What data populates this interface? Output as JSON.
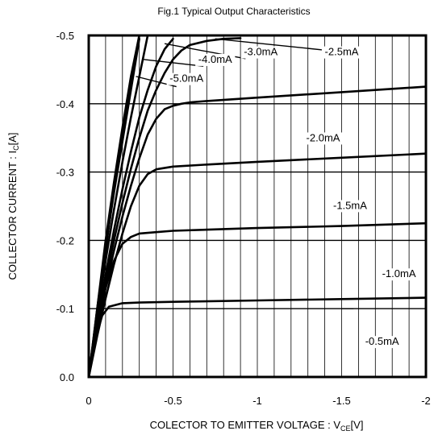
{
  "chart_data": {
    "type": "line",
    "title": "Fig.1  Typical Output Characteristics",
    "xlabel_main": "COLECTOR TO EMITTER VOLTAGE : V",
    "xlabel_sub": "CE",
    "xlabel_unit": "[V]",
    "ylabel_main": "COLLECTOR CURRENT : I",
    "ylabel_sub": "C",
    "ylabel_unit": "[A]",
    "xlim": [
      0,
      -2
    ],
    "ylim": [
      0,
      -0.5
    ],
    "x_ticks": [
      {
        "value": 0,
        "label": "0"
      },
      {
        "value": -0.5,
        "label": "-0.5"
      },
      {
        "value": -1,
        "label": "-1"
      },
      {
        "value": -1.5,
        "label": "-1.5"
      },
      {
        "value": -2,
        "label": "-2"
      }
    ],
    "y_ticks": [
      {
        "value": 0,
        "label": "0.0"
      },
      {
        "value": -0.1,
        "label": "-0.1"
      },
      {
        "value": -0.2,
        "label": "-0.2"
      },
      {
        "value": -0.3,
        "label": "-0.3"
      },
      {
        "value": -0.4,
        "label": "-0.4"
      },
      {
        "value": -0.5,
        "label": "-0.5"
      }
    ],
    "minor_x_grid_step": -0.1,
    "series": [
      {
        "name": "-0.5mA",
        "x": [
          0,
          -0.02,
          -0.05,
          -0.08,
          -0.12,
          -0.2,
          -0.3,
          -0.5,
          -1.0,
          -1.5,
          -2.0
        ],
        "y": [
          0,
          -0.03,
          -0.065,
          -0.09,
          -0.103,
          -0.108,
          -0.109,
          -0.11,
          -0.112,
          -0.114,
          -0.116
        ]
      },
      {
        "name": "-1.0mA",
        "x": [
          0,
          -0.03,
          -0.06,
          -0.1,
          -0.15,
          -0.2,
          -0.25,
          -0.3,
          -0.4,
          -0.5,
          -1.0,
          -1.5,
          -2.0
        ],
        "y": [
          0,
          -0.045,
          -0.09,
          -0.13,
          -0.17,
          -0.195,
          -0.205,
          -0.21,
          -0.212,
          -0.214,
          -0.218,
          -0.221,
          -0.225
        ]
      },
      {
        "name": "-1.5mA",
        "x": [
          0,
          -0.05,
          -0.1,
          -0.15,
          -0.2,
          -0.25,
          -0.3,
          -0.35,
          -0.4,
          -0.5,
          -0.7,
          -1.0,
          -1.5,
          -2.0
        ],
        "y": [
          0,
          -0.06,
          -0.115,
          -0.165,
          -0.21,
          -0.25,
          -0.28,
          -0.297,
          -0.304,
          -0.308,
          -0.311,
          -0.315,
          -0.321,
          -0.327
        ]
      },
      {
        "name": "-2.0mA",
        "x": [
          0,
          -0.05,
          -0.1,
          -0.15,
          -0.2,
          -0.25,
          -0.3,
          -0.35,
          -0.4,
          -0.45,
          -0.5,
          -0.55,
          -0.6,
          -0.7,
          -1.0,
          -1.5,
          -2.0
        ],
        "y": [
          0,
          -0.065,
          -0.13,
          -0.185,
          -0.235,
          -0.28,
          -0.32,
          -0.355,
          -0.378,
          -0.392,
          -0.397,
          -0.4,
          -0.402,
          -0.404,
          -0.409,
          -0.417,
          -0.425
        ]
      },
      {
        "name": "-2.5mA",
        "x": [
          0,
          -0.05,
          -0.1,
          -0.15,
          -0.2,
          -0.25,
          -0.3,
          -0.35,
          -0.4,
          -0.45,
          -0.5,
          -0.55,
          -0.6,
          -0.7,
          -0.8,
          -0.9
        ],
        "y": [
          0,
          -0.075,
          -0.14,
          -0.2,
          -0.255,
          -0.305,
          -0.35,
          -0.39,
          -0.42,
          -0.445,
          -0.465,
          -0.478,
          -0.486,
          -0.492,
          -0.495,
          -0.496
        ]
      },
      {
        "name": "-3.0mA",
        "x": [
          0,
          -0.05,
          -0.1,
          -0.15,
          -0.2,
          -0.25,
          -0.3,
          -0.35,
          -0.4,
          -0.45,
          -0.5
        ],
        "y": [
          0,
          -0.08,
          -0.15,
          -0.215,
          -0.275,
          -0.33,
          -0.38,
          -0.42,
          -0.455,
          -0.48,
          -0.495
        ]
      },
      {
        "name": "-4.0mA",
        "x": [
          0,
          -0.05,
          -0.1,
          -0.15,
          -0.2,
          -0.25,
          -0.3,
          -0.35
        ],
        "y": [
          0,
          -0.09,
          -0.17,
          -0.245,
          -0.315,
          -0.38,
          -0.44,
          -0.5
        ]
      },
      {
        "name": "-5.0mA",
        "x": [
          0,
          -0.05,
          -0.1,
          -0.15,
          -0.2,
          -0.25,
          -0.3
        ],
        "y": [
          0,
          -0.1,
          -0.19,
          -0.27,
          -0.345,
          -0.42,
          -0.495
        ]
      },
      {
        "name": "",
        "x": [
          0,
          -0.05,
          -0.1,
          -0.15,
          -0.2,
          -0.25,
          -0.3
        ],
        "y": [
          0,
          -0.1,
          -0.2,
          -0.285,
          -0.365,
          -0.44,
          -0.5
        ]
      },
      {
        "name": "",
        "x": [
          0,
          -0.05,
          -0.1,
          -0.15,
          -0.2,
          -0.25,
          -0.3
        ],
        "y": [
          0,
          -0.09,
          -0.185,
          -0.275,
          -0.36,
          -0.435,
          -0.5
        ]
      }
    ],
    "annotations": [
      {
        "text": "-5.0mA",
        "x": -0.58,
        "y": -0.432
      },
      {
        "text": "-4.0mA",
        "x": -0.75,
        "y": -0.46
      },
      {
        "text": "-3.0mA",
        "x": -1.02,
        "y": -0.471
      },
      {
        "text": "-2.5mA",
        "x": -1.5,
        "y": -0.471
      },
      {
        "text": "-2.0mA",
        "x": -1.39,
        "y": -0.345
      },
      {
        "text": "-1.5mA",
        "x": -1.55,
        "y": -0.246
      },
      {
        "text": "-1.0mA",
        "x": -1.84,
        "y": -0.146
      },
      {
        "text": "-0.5mA",
        "x": -1.74,
        "y": -0.047
      }
    ]
  }
}
